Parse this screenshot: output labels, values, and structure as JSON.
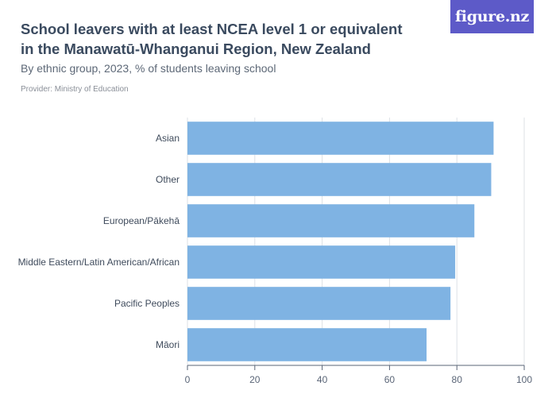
{
  "header": {
    "title": "School leavers with at least NCEA level 1 or equivalent in the Manawatū-Whanganui Region, New Zealand",
    "subtitle": "By ethnic group, 2023, % of students leaving school",
    "provider": "Provider: Ministry of Education",
    "logo_text": "figure.nz"
  },
  "colors": {
    "bar": "#7fb3e3",
    "gridline": "#dde1e6",
    "axis": "#5a6577",
    "logo_bg": "#5d5ac8"
  },
  "chart_data": {
    "type": "bar",
    "orientation": "horizontal",
    "categories": [
      "Asian",
      "Other",
      "European/Pākehā",
      "Middle Eastern/Latin American/African",
      "Pacific Peoples",
      "Māori"
    ],
    "values": [
      90.9,
      90.2,
      85.2,
      79.5,
      78.1,
      71.0
    ],
    "xlim": [
      0,
      100
    ],
    "xticks": [
      "0",
      "20",
      "40",
      "60",
      "80",
      "100"
    ],
    "grid": true,
    "xlabel": "",
    "ylabel": ""
  }
}
